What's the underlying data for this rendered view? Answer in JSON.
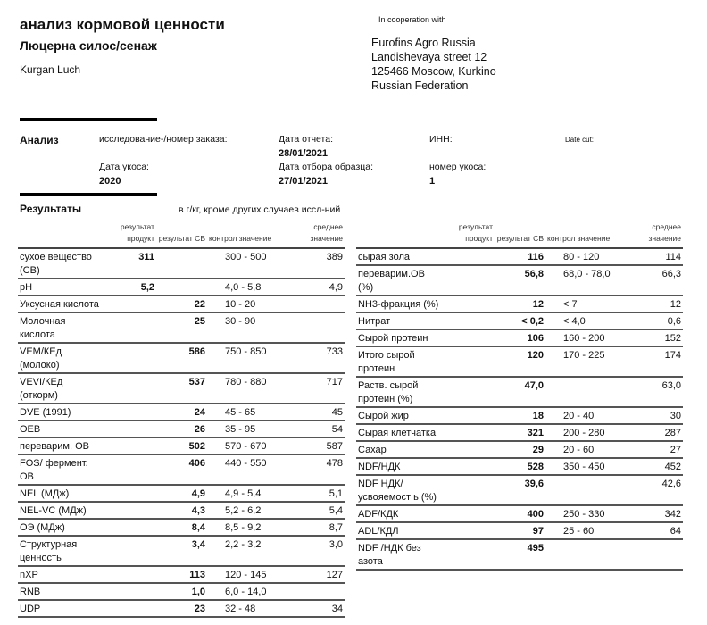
{
  "header": {
    "title": "анализ кормовой ценности",
    "subtitle": "Люцерна силос/сенаж",
    "client": "Kurgan Luch",
    "cooperation": "In cooperation with",
    "address": [
      "Eurofins Agro Russia",
      "Landishevaya street 12",
      "125466    Moscow, Kurkino",
      "Russian Federation"
    ]
  },
  "analysis": {
    "label": "Анализ",
    "order_label": "исследование-/номер заказа:",
    "report_date_label": "Дата отчета:",
    "report_date": "28/01/2021",
    "inn_label": "ИНН:",
    "date_cut_label": "Date cut:",
    "cut_date_label": "Дата укоса:",
    "cut_date": "2020",
    "sample_date_label": "Дата отбора образца:",
    "sample_date": "27/01/2021",
    "cut_number_label": "номер укоса:",
    "cut_number": "1"
  },
  "results": {
    "label": "Результаты",
    "unit_note": "в г/кг, кроме других случаев иссл-ний",
    "columns": [
      "результат продукт",
      "результат СВ",
      "контрол значение",
      "среднее значение"
    ],
    "left": [
      {
        "name": "сухое вещество (СВ)",
        "product": "311",
        "dm": "",
        "range": "300 - 500",
        "mean": "389"
      },
      {
        "name": "pH",
        "product": "5,2",
        "dm": "",
        "range": "4,0 - 5,8",
        "mean": "4,9"
      },
      {
        "name": "Уксусная кислота",
        "product": "",
        "dm": "22",
        "range": "10 - 20",
        "mean": ""
      },
      {
        "name": "Молочная кислота",
        "product": "",
        "dm": "25",
        "range": "30 - 90",
        "mean": ""
      },
      {
        "name": "VEM/КЕд (молоко)",
        "product": "",
        "dm": "586",
        "range": "750 - 850",
        "mean": "733"
      },
      {
        "name": "VEVI/КЕд (откорм)",
        "product": "",
        "dm": "537",
        "range": "780 - 880",
        "mean": "717"
      },
      {
        "name": "DVE (1991)",
        "product": "",
        "dm": "24",
        "range": "45 - 65",
        "mean": "45"
      },
      {
        "name": "OEB",
        "product": "",
        "dm": "26",
        "range": "35 - 95",
        "mean": "54"
      },
      {
        "name": "переварим. ОВ",
        "product": "",
        "dm": "502",
        "range": "570 - 670",
        "mean": "587"
      },
      {
        "name": "FOS/  фермент. ОВ",
        "product": "",
        "dm": "406",
        "range": "440 - 550",
        "mean": "478"
      },
      {
        "name": "NEL (МДж)",
        "product": "",
        "dm": "4,9",
        "range": "4,9 - 5,4",
        "mean": "5,1"
      },
      {
        "name": "NEL-VC (МДж)",
        "product": "",
        "dm": "4,3",
        "range": "5,2 - 6,2",
        "mean": "5,4"
      },
      {
        "name": "ОЭ (МДж)",
        "product": "",
        "dm": "8,4",
        "range": "8,5 - 9,2",
        "mean": "8,7"
      },
      {
        "name": "Структурная ценность",
        "product": "",
        "dm": "3,4",
        "range": "2,2 - 3,2",
        "mean": "3,0"
      },
      {
        "name": "nXP",
        "product": "",
        "dm": "113",
        "range": "120 - 145",
        "mean": "127"
      },
      {
        "name": "RNB",
        "product": "",
        "dm": "1,0",
        "range": "6,0 - 14,0",
        "mean": ""
      },
      {
        "name": "UDP",
        "product": "",
        "dm": "23",
        "range": "32 - 48",
        "mean": "34"
      }
    ],
    "right": [
      {
        "name": "сырая зола",
        "product": "",
        "dm": "116",
        "range": "80 - 120",
        "mean": "114"
      },
      {
        "name": "переварим.ОВ (%)",
        "product": "",
        "dm": "56,8",
        "range": "68,0 - 78,0",
        "mean": "66,3"
      },
      {
        "name": "NH3-фракция (%)",
        "product": "",
        "dm": "12",
        "range": "< 7",
        "mean": "12"
      },
      {
        "name": "Нитрат",
        "product": "",
        "dm": "< 0,2",
        "range": "< 4,0",
        "mean": "0,6"
      },
      {
        "name": "Сырой протеин",
        "product": "",
        "dm": "106",
        "range": "160 - 200",
        "mean": "152"
      },
      {
        "name": "Итого сырой протеин",
        "product": "",
        "dm": "120",
        "range": "170 - 225",
        "mean": "174"
      },
      {
        "name": "Раств. сырой протеин (%)",
        "product": "",
        "dm": "47,0",
        "range": "",
        "mean": "63,0"
      },
      {
        "name": "Сырой жир",
        "product": "",
        "dm": "18",
        "range": "20 - 40",
        "mean": "30"
      },
      {
        "name": "Сырая клетчатка",
        "product": "",
        "dm": "321",
        "range": "200 - 280",
        "mean": "287"
      },
      {
        "name": "Сахар",
        "product": "",
        "dm": "29",
        "range": "20 - 60",
        "mean": "27"
      },
      {
        "name": "NDF/НДК",
        "product": "",
        "dm": "528",
        "range": "350 - 450",
        "mean": "452"
      },
      {
        "name": "NDF НДК/усвояемост ь (%)",
        "product": "",
        "dm": "39,6",
        "range": "",
        "mean": "42,6"
      },
      {
        "name": "ADF/КДК",
        "product": "",
        "dm": "400",
        "range": "250 - 330",
        "mean": "342"
      },
      {
        "name": "ADL/КДЛ",
        "product": "",
        "dm": "97",
        "range": "25 - 60",
        "mean": "64"
      },
      {
        "name": "NDF  /НДК без азота",
        "product": "",
        "dm": "495",
        "range": "",
        "mean": ""
      }
    ]
  }
}
